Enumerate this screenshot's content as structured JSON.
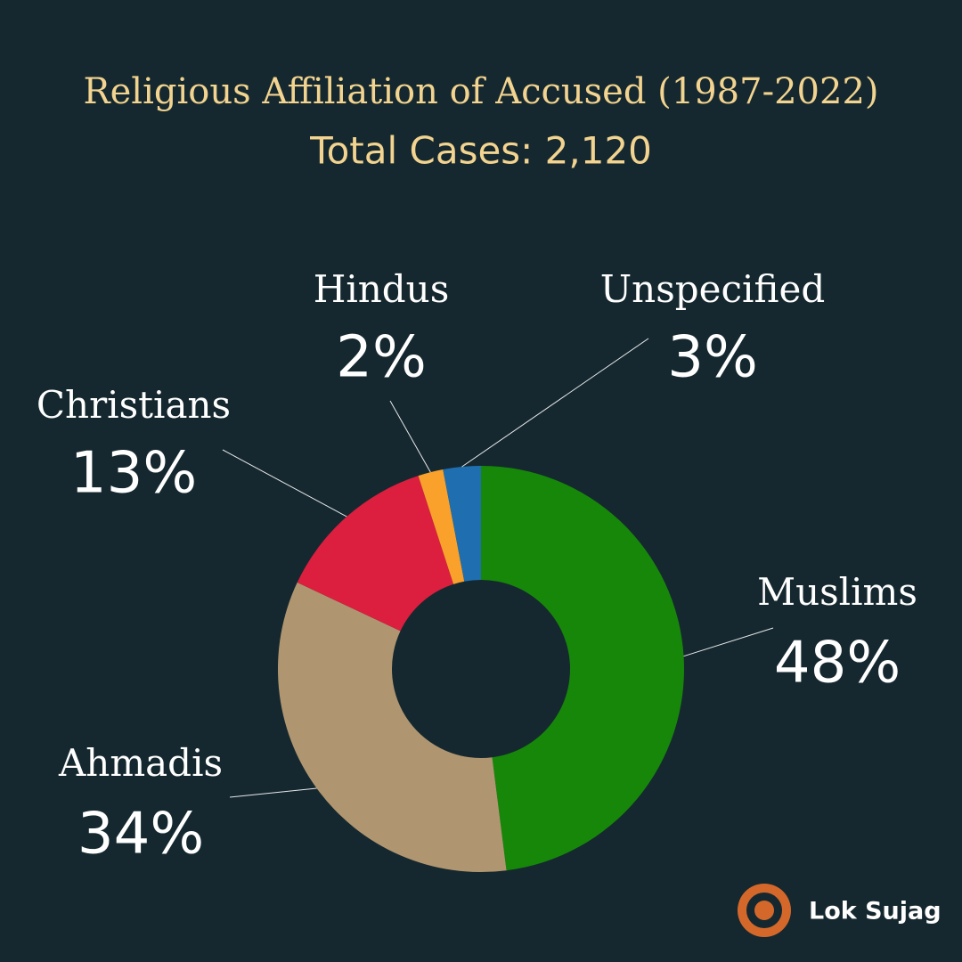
{
  "chart_data": {
    "type": "donut",
    "title": "Religious Affiliation of Accused (1987-2022)",
    "subtitle": "Total Cases: 2,120",
    "categories": [
      "Muslims",
      "Ahmadis",
      "Christians",
      "Hindus",
      "Unspecified"
    ],
    "values": [
      48,
      34,
      13,
      2,
      3
    ],
    "value_labels": [
      "48%",
      "34%",
      "13%",
      "2%",
      "3%"
    ],
    "colors": [
      "#17870a",
      "#b09670",
      "#dc1e3f",
      "#f9a12b",
      "#1f6fb0"
    ],
    "logo_text": "Lok Sujag"
  }
}
